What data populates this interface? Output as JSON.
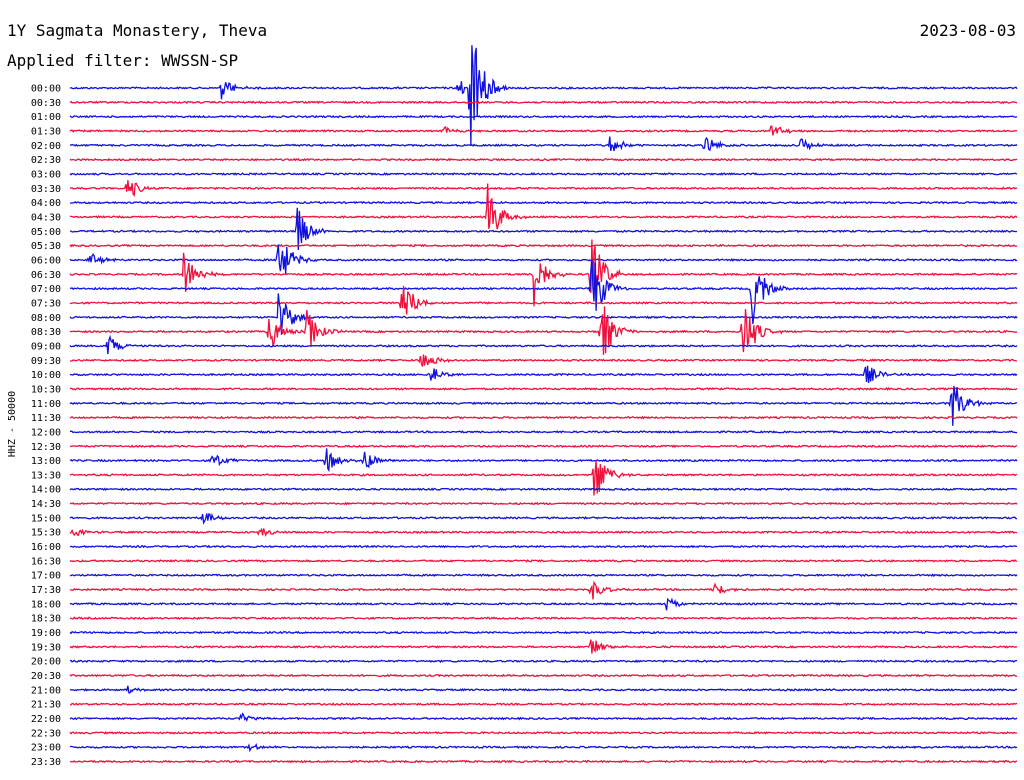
{
  "header": {
    "station": "1Y Sagmata Monastery, Theva",
    "date": "2023-08-03",
    "filter": "Applied filter: WWSSN-SP"
  },
  "chart_data": {
    "type": "line",
    "title": "1Y Sagmata Monastery, Theva",
    "subtitle": "Applied filter: WWSSN-SP",
    "date": "2023-08-03",
    "ylabel": "HHZ - 50000",
    "row_labels": [
      "00:00",
      "00:30",
      "01:00",
      "01:30",
      "02:00",
      "02:30",
      "03:00",
      "03:30",
      "04:00",
      "04:30",
      "05:00",
      "05:30",
      "06:00",
      "06:30",
      "07:00",
      "07:30",
      "08:00",
      "08:30",
      "09:00",
      "09:30",
      "10:00",
      "10:30",
      "11:00",
      "11:30",
      "12:00",
      "12:30",
      "13:00",
      "13:30",
      "14:00",
      "14:30",
      "15:00",
      "15:30",
      "16:00",
      "16:30",
      "17:00",
      "17:30",
      "18:00",
      "18:30",
      "19:00",
      "19:30",
      "20:00",
      "20:30",
      "21:00",
      "21:30",
      "22:00",
      "22:30",
      "23:00",
      "23:30"
    ],
    "trace_colors": [
      "#1010e0",
      "#f0103c"
    ],
    "events": [
      {
        "row": "00:00",
        "t": 0.16,
        "amp": 12
      },
      {
        "row": "00:00",
        "t": 0.41,
        "amp": 10
      },
      {
        "row": "00:00",
        "t": 0.423,
        "amp": 70
      },
      {
        "row": "01:30",
        "t": 0.395,
        "amp": 5
      },
      {
        "row": "01:30",
        "t": 0.74,
        "amp": 8
      },
      {
        "row": "02:00",
        "t": 0.57,
        "amp": 10
      },
      {
        "row": "02:00",
        "t": 0.67,
        "amp": 12
      },
      {
        "row": "02:00",
        "t": 0.77,
        "amp": 10
      },
      {
        "row": "03:30",
        "t": 0.06,
        "amp": 14
      },
      {
        "row": "04:30",
        "t": 0.44,
        "amp": 40
      },
      {
        "row": "05:00",
        "t": 0.24,
        "amp": 25
      },
      {
        "row": "06:00",
        "t": 0.02,
        "amp": 8
      },
      {
        "row": "06:00",
        "t": 0.22,
        "amp": 35
      },
      {
        "row": "06:30",
        "t": 0.12,
        "amp": 25
      },
      {
        "row": "06:30",
        "t": 0.49,
        "amp": 35
      },
      {
        "row": "06:30",
        "t": 0.55,
        "amp": 45
      },
      {
        "row": "07:00",
        "t": 0.55,
        "amp": 45
      },
      {
        "row": "07:00",
        "t": 0.72,
        "amp": 40
      },
      {
        "row": "07:30",
        "t": 0.35,
        "amp": 30
      },
      {
        "row": "08:00",
        "t": 0.22,
        "amp": 30
      },
      {
        "row": "08:30",
        "t": 0.21,
        "amp": 25
      },
      {
        "row": "08:30",
        "t": 0.25,
        "amp": 25
      },
      {
        "row": "08:30",
        "t": 0.56,
        "amp": 40
      },
      {
        "row": "08:30",
        "t": 0.71,
        "amp": 40
      },
      {
        "row": "09:00",
        "t": 0.04,
        "amp": 12
      },
      {
        "row": "09:30",
        "t": 0.37,
        "amp": 15
      },
      {
        "row": "10:00",
        "t": 0.38,
        "amp": 12
      },
      {
        "row": "10:00",
        "t": 0.84,
        "amp": 12
      },
      {
        "row": "11:00",
        "t": 0.93,
        "amp": 30
      },
      {
        "row": "13:00",
        "t": 0.15,
        "amp": 10
      },
      {
        "row": "13:00",
        "t": 0.27,
        "amp": 15
      },
      {
        "row": "13:00",
        "t": 0.31,
        "amp": 12
      },
      {
        "row": "13:30",
        "t": 0.553,
        "amp": 30
      },
      {
        "row": "15:00",
        "t": 0.14,
        "amp": 8
      },
      {
        "row": "15:30",
        "t": 0.0,
        "amp": 6
      },
      {
        "row": "15:30",
        "t": 0.2,
        "amp": 6
      },
      {
        "row": "17:30",
        "t": 0.55,
        "amp": 12
      },
      {
        "row": "17:30",
        "t": 0.68,
        "amp": 8
      },
      {
        "row": "18:00",
        "t": 0.63,
        "amp": 8
      },
      {
        "row": "19:30",
        "t": 0.55,
        "amp": 10
      },
      {
        "row": "21:00",
        "t": 0.06,
        "amp": 4
      },
      {
        "row": "22:00",
        "t": 0.18,
        "amp": 6
      },
      {
        "row": "23:00",
        "t": 0.19,
        "amp": 4
      }
    ]
  }
}
